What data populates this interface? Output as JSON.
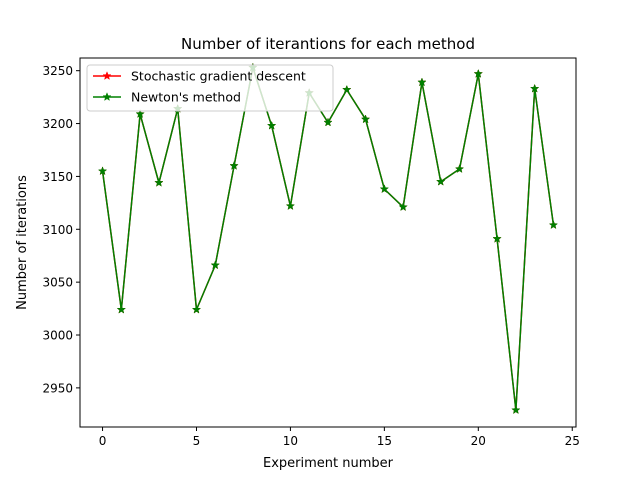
{
  "chart_data": {
    "type": "line",
    "title": "Number of iterantions for each method",
    "xlabel": "Experiment number",
    "ylabel": "Number of iterations",
    "xlim": [
      -1.2,
      25.2
    ],
    "ylim": [
      2913,
      3262
    ],
    "xticks": [
      0,
      5,
      10,
      15,
      20,
      25
    ],
    "yticks": [
      2950,
      3000,
      3050,
      3100,
      3150,
      3200,
      3250
    ],
    "grid": false,
    "legend_position": "upper left",
    "marker": "star",
    "x": [
      0,
      1,
      2,
      3,
      4,
      5,
      6,
      7,
      8,
      9,
      10,
      11,
      12,
      13,
      14,
      15,
      16,
      17,
      18,
      19,
      20,
      21,
      22,
      23,
      24
    ],
    "series": [
      {
        "name": "Stochastic gradient descent",
        "color": "#ff0000",
        "values": [
          3155,
          3024,
          3209,
          3144,
          3214,
          3024,
          3066,
          3160,
          3253,
          3198,
          3122,
          3229,
          3201,
          3232,
          3204,
          3138,
          3121,
          3239,
          3145,
          3157,
          3247,
          3091,
          2929,
          3233,
          3104
        ]
      },
      {
        "name": "Newton's method",
        "color": "#008000",
        "values": [
          3155,
          3024,
          3209,
          3144,
          3214,
          3024,
          3066,
          3160,
          3253,
          3198,
          3122,
          3229,
          3201,
          3232,
          3204,
          3138,
          3121,
          3239,
          3145,
          3157,
          3247,
          3091,
          2929,
          3233,
          3104
        ]
      }
    ]
  }
}
